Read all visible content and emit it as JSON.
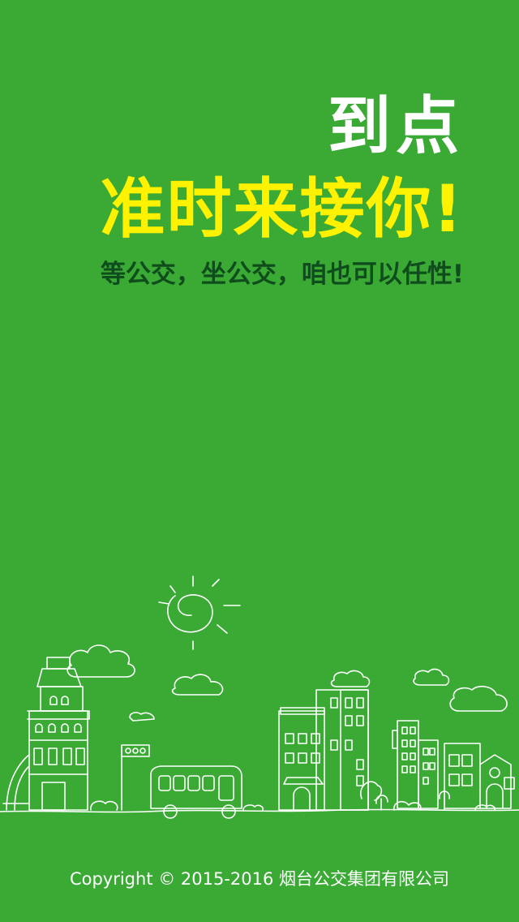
{
  "splash": {
    "app_name": "到点",
    "slogan": "准时来接你!",
    "subslogan": "等公交，坐公交，咱也可以任性!",
    "copyright": "Copyright © 2015-2016 烟台公交集团有限公司"
  },
  "illustration": {
    "icon": "city-skyline-illustration",
    "line_color": "#ffffff"
  },
  "colors": {
    "background": "#3aaa35",
    "title": "#ffffff",
    "slogan": "#fff200",
    "subslogan": "#0f4d1c"
  }
}
